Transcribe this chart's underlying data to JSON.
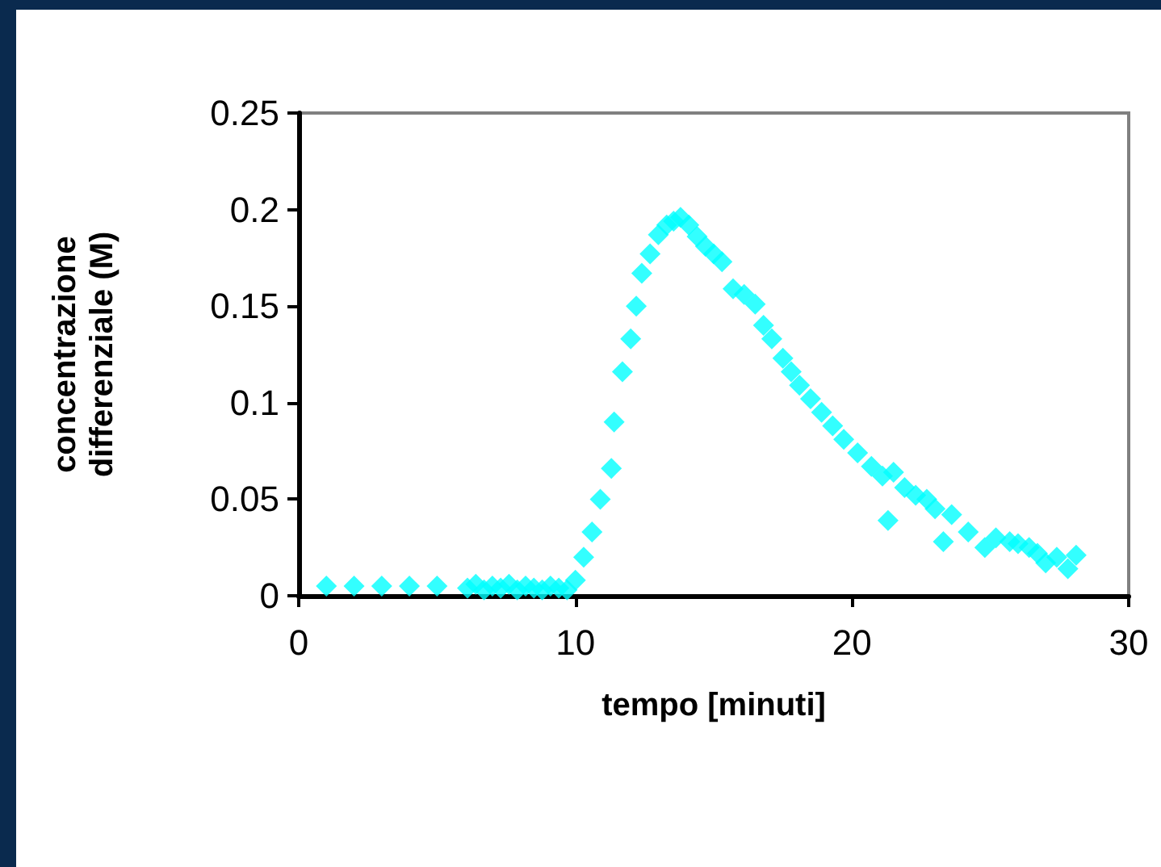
{
  "chart_data": {
    "type": "scatter",
    "xlabel": "tempo [minuti]",
    "ylabel": "concentrazione\ndifferenziale (M)",
    "xlim": [
      0,
      30
    ],
    "xticks": [
      0,
      10,
      20,
      30
    ],
    "ylim": [
      0,
      0.25
    ],
    "yticks": [
      0,
      0.05,
      0.1,
      0.15,
      0.2,
      0.25
    ],
    "grid": false,
    "marker": "diamond",
    "series": [
      {
        "color": "#00ffff",
        "x": [
          1,
          2,
          3,
          4,
          5,
          6.1,
          6.4,
          6.7,
          7.0,
          7.3,
          7.6,
          7.9,
          8.2,
          8.5,
          8.8,
          9.1,
          9.4,
          9.7,
          10.0,
          10.3,
          10.6,
          10.9,
          11.3,
          11.4,
          11.7,
          12.0,
          12.2,
          12.4,
          12.7,
          13.0,
          13.3,
          13.55,
          13.8,
          14.1,
          14.4,
          14.7,
          15.0,
          15.3,
          15.7,
          16.1,
          16.5,
          16.8,
          17.1,
          17.5,
          17.8,
          18.1,
          18.5,
          18.9,
          19.3,
          19.7,
          20.2,
          20.7,
          21.1,
          21.3,
          21.5,
          21.9,
          22.3,
          22.7,
          23.0,
          23.3,
          23.6,
          24.2,
          24.8,
          25.2,
          25.7,
          26.0,
          26.4,
          26.7,
          27.0,
          27.4,
          27.8,
          28.1
        ],
        "values": [
          0.005,
          0.005,
          0.005,
          0.005,
          0.005,
          0.004,
          0.006,
          0.003,
          0.005,
          0.004,
          0.006,
          0.003,
          0.005,
          0.004,
          0.003,
          0.005,
          0.004,
          0.003,
          0.008,
          0.02,
          0.033,
          0.05,
          0.066,
          0.09,
          0.116,
          0.133,
          0.15,
          0.167,
          0.177,
          0.187,
          0.192,
          0.194,
          0.196,
          0.192,
          0.186,
          0.181,
          0.177,
          0.173,
          0.159,
          0.156,
          0.151,
          0.14,
          0.133,
          0.123,
          0.116,
          0.109,
          0.102,
          0.095,
          0.088,
          0.081,
          0.074,
          0.067,
          0.062,
          0.039,
          0.064,
          0.056,
          0.052,
          0.05,
          0.045,
          0.028,
          0.042,
          0.033,
          0.025,
          0.03,
          0.028,
          0.027,
          0.025,
          0.022,
          0.017,
          0.02,
          0.014,
          0.021
        ]
      }
    ]
  }
}
